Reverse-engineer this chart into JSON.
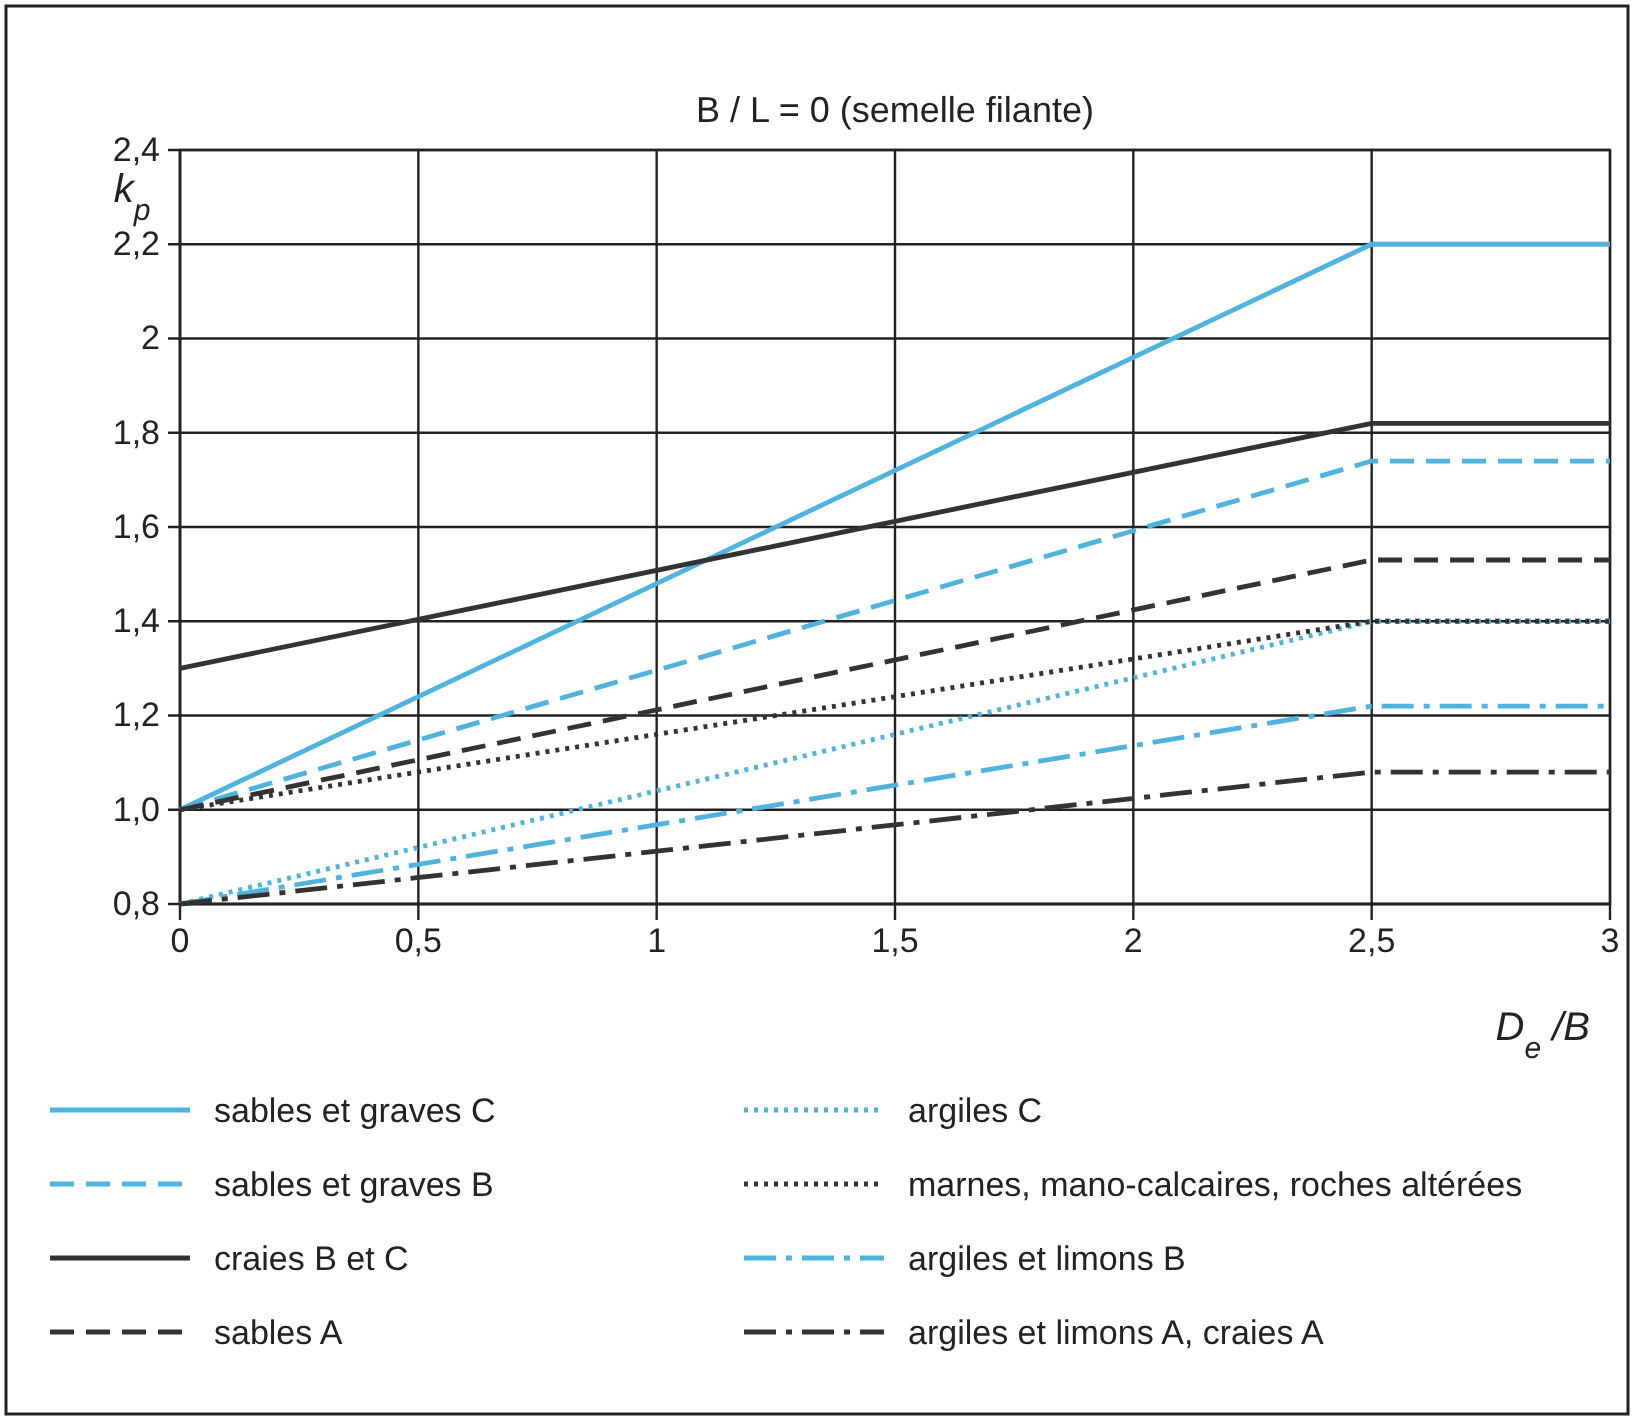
{
  "chart_data": {
    "type": "line",
    "title": "B / L = 0  (semelle filante)",
    "xlabel": "D$_{e}$ /B",
    "ylabel": "k$_{p}$",
    "x": [
      0,
      2.5,
      3
    ],
    "xlim": [
      0,
      3
    ],
    "xticks": [
      0,
      {
        "value": 0.5,
        "label": "0,5"
      },
      1,
      {
        "value": 1.5,
        "label": "1,5"
      },
      2,
      {
        "value": 2.5,
        "label": "2,5"
      },
      3
    ],
    "ylim": [
      0.8,
      2.4
    ],
    "yticks": [
      {
        "value": 0.8,
        "label": "0,8"
      },
      {
        "value": 1.0,
        "label": "1,0"
      },
      {
        "value": 1.2,
        "label": "1,2"
      },
      {
        "value": 1.4,
        "label": "1,4"
      },
      {
        "value": 1.6,
        "label": "1,6"
      },
      {
        "value": 1.8,
        "label": "1,8"
      },
      {
        "value": 2,
        "label": "2"
      },
      {
        "value": 2.2,
        "label": "2,2"
      },
      {
        "value": 2.4,
        "label": "2,4"
      }
    ],
    "grid": true,
    "legend": "bottom",
    "marker": "none",
    "series": [
      {
        "name": "sables et graves C",
        "color": "#4fb3e0",
        "line_style": "solid",
        "values": [
          1.0,
          2.2,
          2.2
        ]
      },
      {
        "name": "sables et graves B",
        "color": "#4fb3e0",
        "line_style": "dashed",
        "values": [
          1.0,
          1.74,
          1.74
        ]
      },
      {
        "name": "craies B et C",
        "color": "#333333",
        "line_style": "solid",
        "values": [
          1.3,
          1.82,
          1.82
        ]
      },
      {
        "name": "sables A",
        "color": "#333333",
        "line_style": "dashed",
        "values": [
          1.0,
          1.53,
          1.53
        ]
      },
      {
        "name": "argiles C",
        "color": "#4fb3e0",
        "line_style": "dotted",
        "values": [
          0.8,
          1.4,
          1.4
        ]
      },
      {
        "name": "marnes, mano-calcaires, roches altérées",
        "color": "#333333",
        "line_style": "dotted",
        "values": [
          1.0,
          1.4,
          1.4
        ]
      },
      {
        "name": "argiles et limons B",
        "color": "#4fb3e0",
        "line_style": "dashdot",
        "values": [
          0.8,
          1.22,
          1.22
        ]
      },
      {
        "name": "argiles et limons A, craies A",
        "color": "#333333",
        "line_style": "dashdot",
        "values": [
          0.8,
          1.08,
          1.08
        ]
      }
    ]
  }
}
